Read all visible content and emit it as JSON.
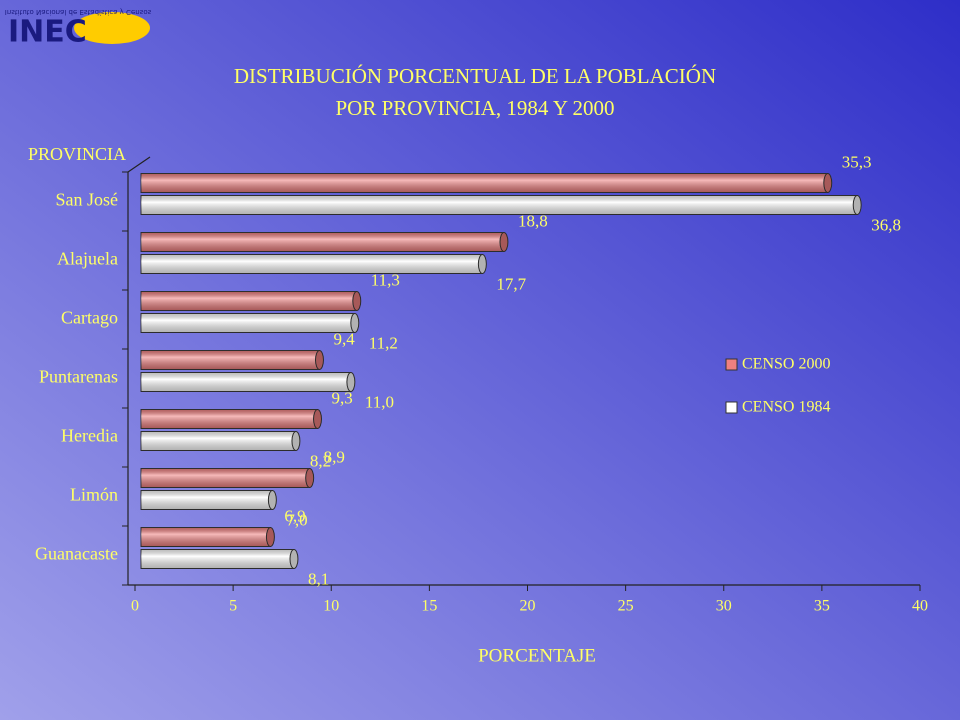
{
  "logo": {
    "text": "INEC",
    "subtitle": "Instituto Nacional de Estadística y Censos"
  },
  "chart_data": {
    "type": "barh",
    "title": "DISTRIBUCIÓN PORCENTUAL DE LA POBLACIÓN",
    "subtitle": "POR PROVINCIA, 1984 Y 2000",
    "y_label": "PROVINCIA",
    "x_label": "PORCENTAJE",
    "categories": [
      "San José",
      "Alajuela",
      "Cartago",
      "Puntarenas",
      "Heredia",
      "Limón",
      "Guanacaste"
    ],
    "series": [
      {
        "name": "CENSO 2000",
        "color": "#f08080",
        "values": [
          35.3,
          18.8,
          11.3,
          9.4,
          9.3,
          8.9,
          6.9
        ],
        "value_labels": [
          "35,3",
          "18,8",
          "11,3",
          "9,4",
          "9,3",
          "8,9",
          "6,9"
        ]
      },
      {
        "name": "CENSO 1984",
        "color": "#ffffff",
        "values": [
          36.8,
          17.7,
          11.2,
          11.0,
          8.2,
          7.0,
          8.1
        ],
        "value_labels": [
          "36,8",
          "17,7",
          "11,2",
          "11,0",
          "8,2",
          "7,0",
          "8,1"
        ]
      }
    ],
    "xlim": [
      0,
      40
    ],
    "xticks": [
      0,
      5,
      10,
      15,
      20,
      25,
      30,
      35,
      40
    ]
  }
}
